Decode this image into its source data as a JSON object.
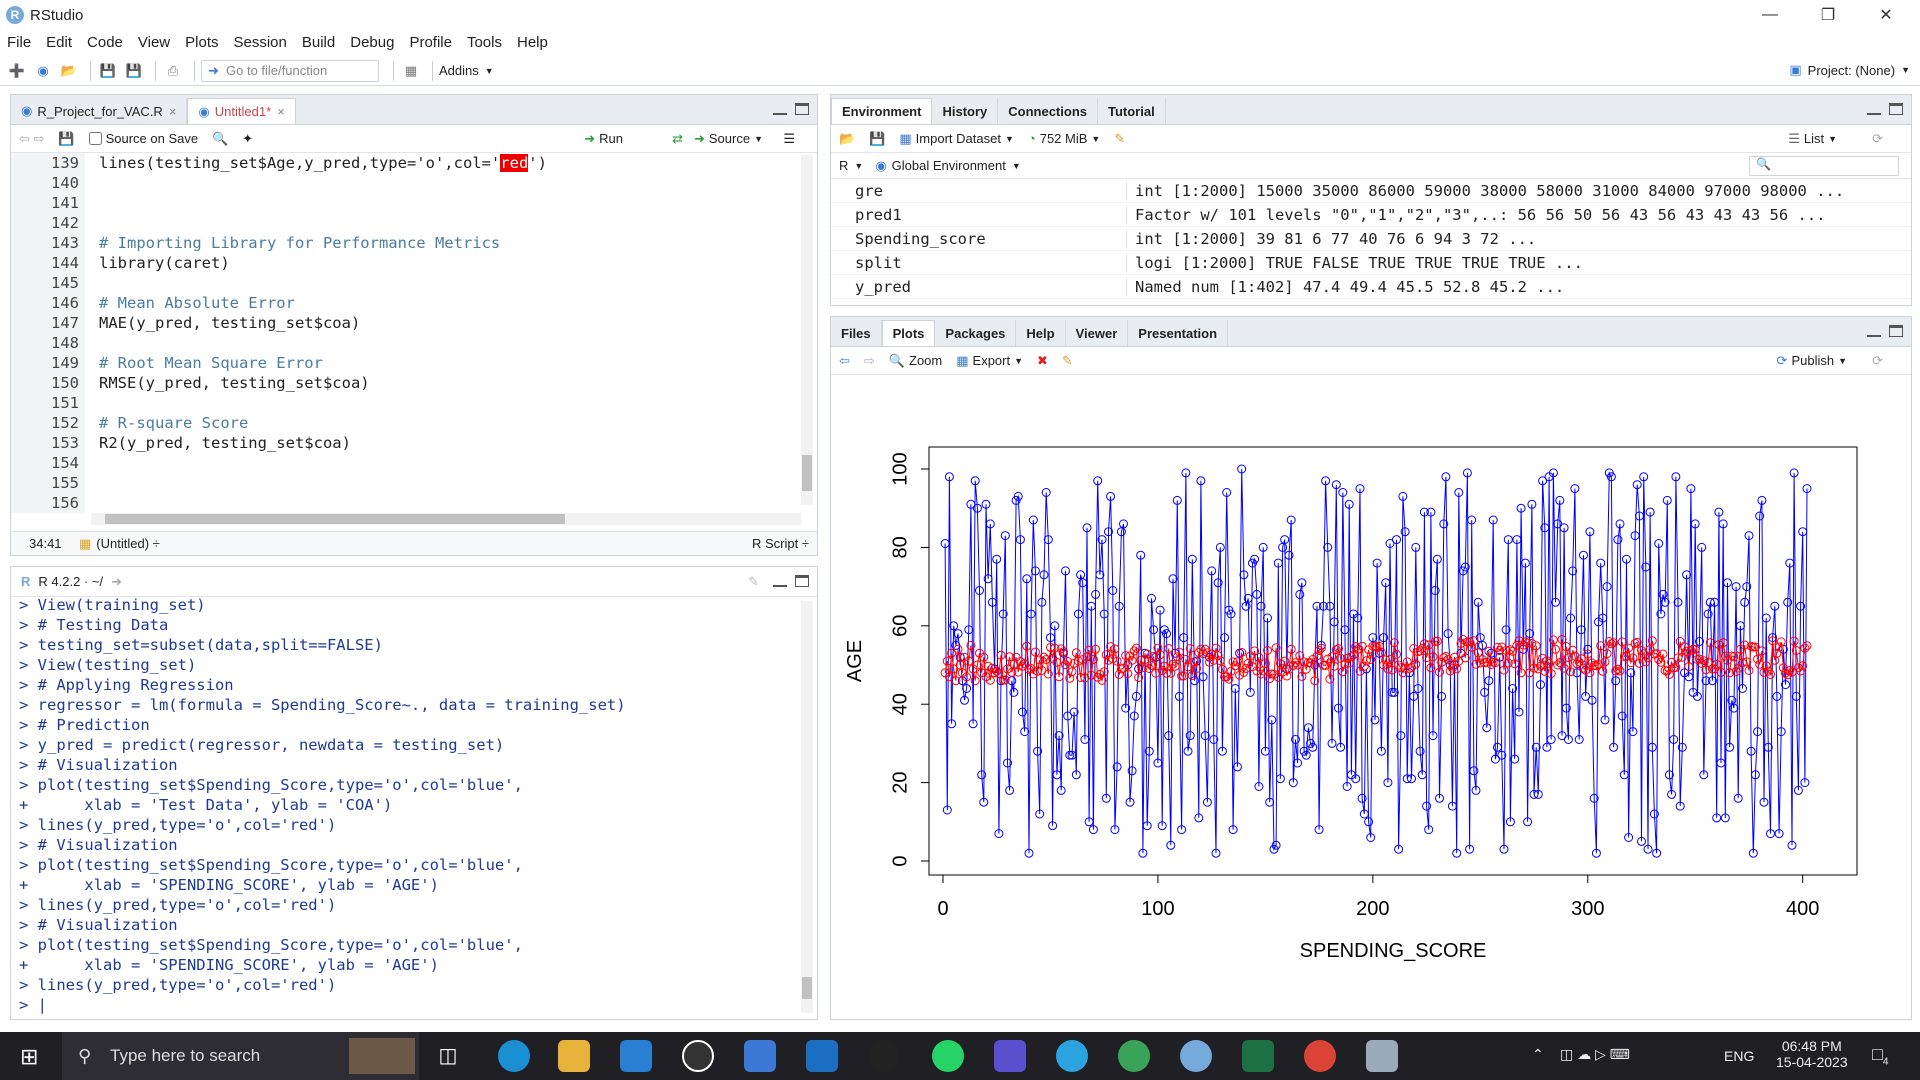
{
  "window": {
    "title": "RStudio",
    "logo": "R"
  },
  "menu": [
    "File",
    "Edit",
    "Code",
    "View",
    "Plots",
    "Session",
    "Build",
    "Debug",
    "Profile",
    "Tools",
    "Help"
  ],
  "toolbar": {
    "goto_placeholder": "Go to file/function",
    "addins": "Addins",
    "project": "Project: (None)"
  },
  "editor": {
    "tabs": [
      {
        "label": "R_Project_for_VAC.R",
        "active": false
      },
      {
        "label": "Untitled1*",
        "active": true
      }
    ],
    "toolbar": {
      "source_on_save": "Source on Save",
      "run": "Run",
      "source": "Source"
    },
    "line_numbers": [
      "139",
      "140",
      "141",
      "142",
      "143",
      "144",
      "145",
      "146",
      "147",
      "148",
      "149",
      "150",
      "151",
      "152",
      "153",
      "154",
      "155",
      "156"
    ],
    "line139_prefix": "lines(testing_set$Age,y_pred,type='o',col='",
    "line139_hl": "red",
    "line139_suffix": "')",
    "comment143": "# Importing Library for Performance Metrics",
    "line144": "library(caret)",
    "comment146": "# Mean Absolute Error",
    "line147": "MAE(y_pred, testing_set$coa)",
    "comment149": "# Root Mean Square Error",
    "line150": "RMSE(y_pred, testing_set$coa)",
    "comment152": "# R-square Score",
    "line153": "R2(y_pred, testing_set$coa)",
    "status": {
      "position": "34:41",
      "scope": "(Untitled) ÷",
      "type": "R Script ÷"
    }
  },
  "console": {
    "header": "R 4.2.2 · ~/",
    "lines": [
      "> View(training_set)",
      "> # Testing Data",
      "> testing_set=subset(data,split==FALSE)",
      "> View(testing_set)",
      "> # Applying Regression",
      "> regressor = lm(formula = Spending_Score~., data = training_set)",
      "> # Prediction",
      "> y_pred = predict(regressor, newdata = testing_set)",
      "> # Visualization",
      "> plot(testing_set$Spending_Score,type='o',col='blue',",
      "+      xlab = 'Test Data', ylab = 'COA')",
      "> lines(y_pred,type='o',col='red')",
      "> # Visualization",
      "> plot(testing_set$Spending_Score,type='o',col='blue',",
      "+      xlab = 'SPENDING_SCORE', ylab = 'AGE')",
      "> lines(y_pred,type='o',col='red')",
      "> # Visualization",
      "> plot(testing_set$Spending_Score,type='o',col='blue',",
      "+      xlab = 'SPENDING_SCORE', ylab = 'AGE')",
      "> lines(y_pred,type='o',col='red')",
      "> |"
    ]
  },
  "environment": {
    "tabs": [
      "Environment",
      "History",
      "Connections",
      "Tutorial"
    ],
    "toolbar": {
      "import": "Import Dataset",
      "memory": "752 MiB",
      "list": "List",
      "lang": "R",
      "scope": "Global Environment"
    },
    "rows": [
      {
        "name": "gre",
        "value": "int [1:2000] 15000 35000 86000 59000 38000 58000 31000 84000 97000 98000 ..."
      },
      {
        "name": "pred1",
        "value": "Factor w/ 101 levels \"0\",\"1\",\"2\",\"3\",..: 56 56 50 56 43 56 43 43 43 56 ..."
      },
      {
        "name": "Spending_score",
        "value": "int [1:2000] 39 81 6 77 40 76 6 94 3 72 ..."
      },
      {
        "name": "split",
        "value": "logi [1:2000] TRUE FALSE TRUE TRUE TRUE TRUE ..."
      },
      {
        "name": "y_pred",
        "value": "Named num [1:402] 47.4 49.4 45.5 52.8 45.2 ..."
      }
    ]
  },
  "files": {
    "tabs": [
      "Files",
      "Plots",
      "Packages",
      "Help",
      "Viewer",
      "Presentation"
    ],
    "toolbar": {
      "zoom": "Zoom",
      "export": "Export",
      "publish": "Publish"
    }
  },
  "chart_data": {
    "type": "line",
    "xlabel": "SPENDING_SCORE",
    "ylabel": "AGE",
    "xlim": [
      0,
      402
    ],
    "ylim": [
      0,
      100
    ],
    "xticks": [
      "0",
      "100",
      "200",
      "300",
      "400"
    ],
    "yticks": [
      "0",
      "20",
      "40",
      "60",
      "80",
      "100"
    ],
    "series": [
      {
        "color": "#0000ff",
        "n": 402,
        "range": [
          1,
          100
        ]
      },
      {
        "color": "#ff0000",
        "n": 402,
        "range": [
          42,
          57
        ]
      }
    ],
    "blue_sample": [
      81,
      13,
      98,
      35,
      60,
      55,
      58,
      52,
      46,
      41,
      44,
      59,
      91,
      35,
      97,
      90,
      69,
      22,
      15,
      91,
      72,
      86,
      66,
      49,
      77,
      7,
      46,
      63,
      83,
      25,
      18,
      46,
      43,
      92,
      93,
      82,
      38,
      33,
      72,
      2,
      63,
      87,
      74,
      28,
      12,
      66,
      73,
      94,
      82,
      57,
      9,
      60,
      22,
      32,
      18,
      53,
      74,
      37
    ],
    "red_sample": [
      48,
      51,
      47,
      53,
      49,
      46,
      54,
      50,
      48,
      52,
      47,
      51,
      55,
      49,
      46,
      50,
      53,
      48,
      52,
      47
    ]
  },
  "taskbar": {
    "search": "Type here to search",
    "time": "06:48 PM",
    "date": "15-04-2023",
    "lang": "ENG",
    "badge": "4"
  }
}
